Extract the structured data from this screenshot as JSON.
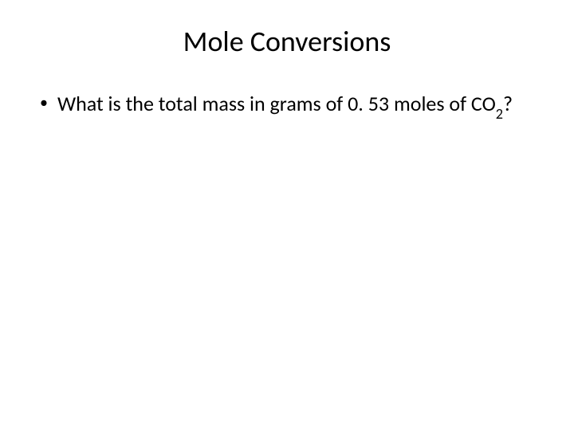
{
  "slide": {
    "title": "Mole Conversions",
    "bullet": {
      "marker": "•",
      "text_part1": "What is the total mass in grams of 0. 53 moles of CO",
      "subscript": "2",
      "text_part2": "?"
    }
  },
  "styling": {
    "background_color": "#ffffff",
    "text_color": "#000000",
    "title_fontsize": 36,
    "body_fontsize": 26,
    "font_family": "Calibri"
  }
}
